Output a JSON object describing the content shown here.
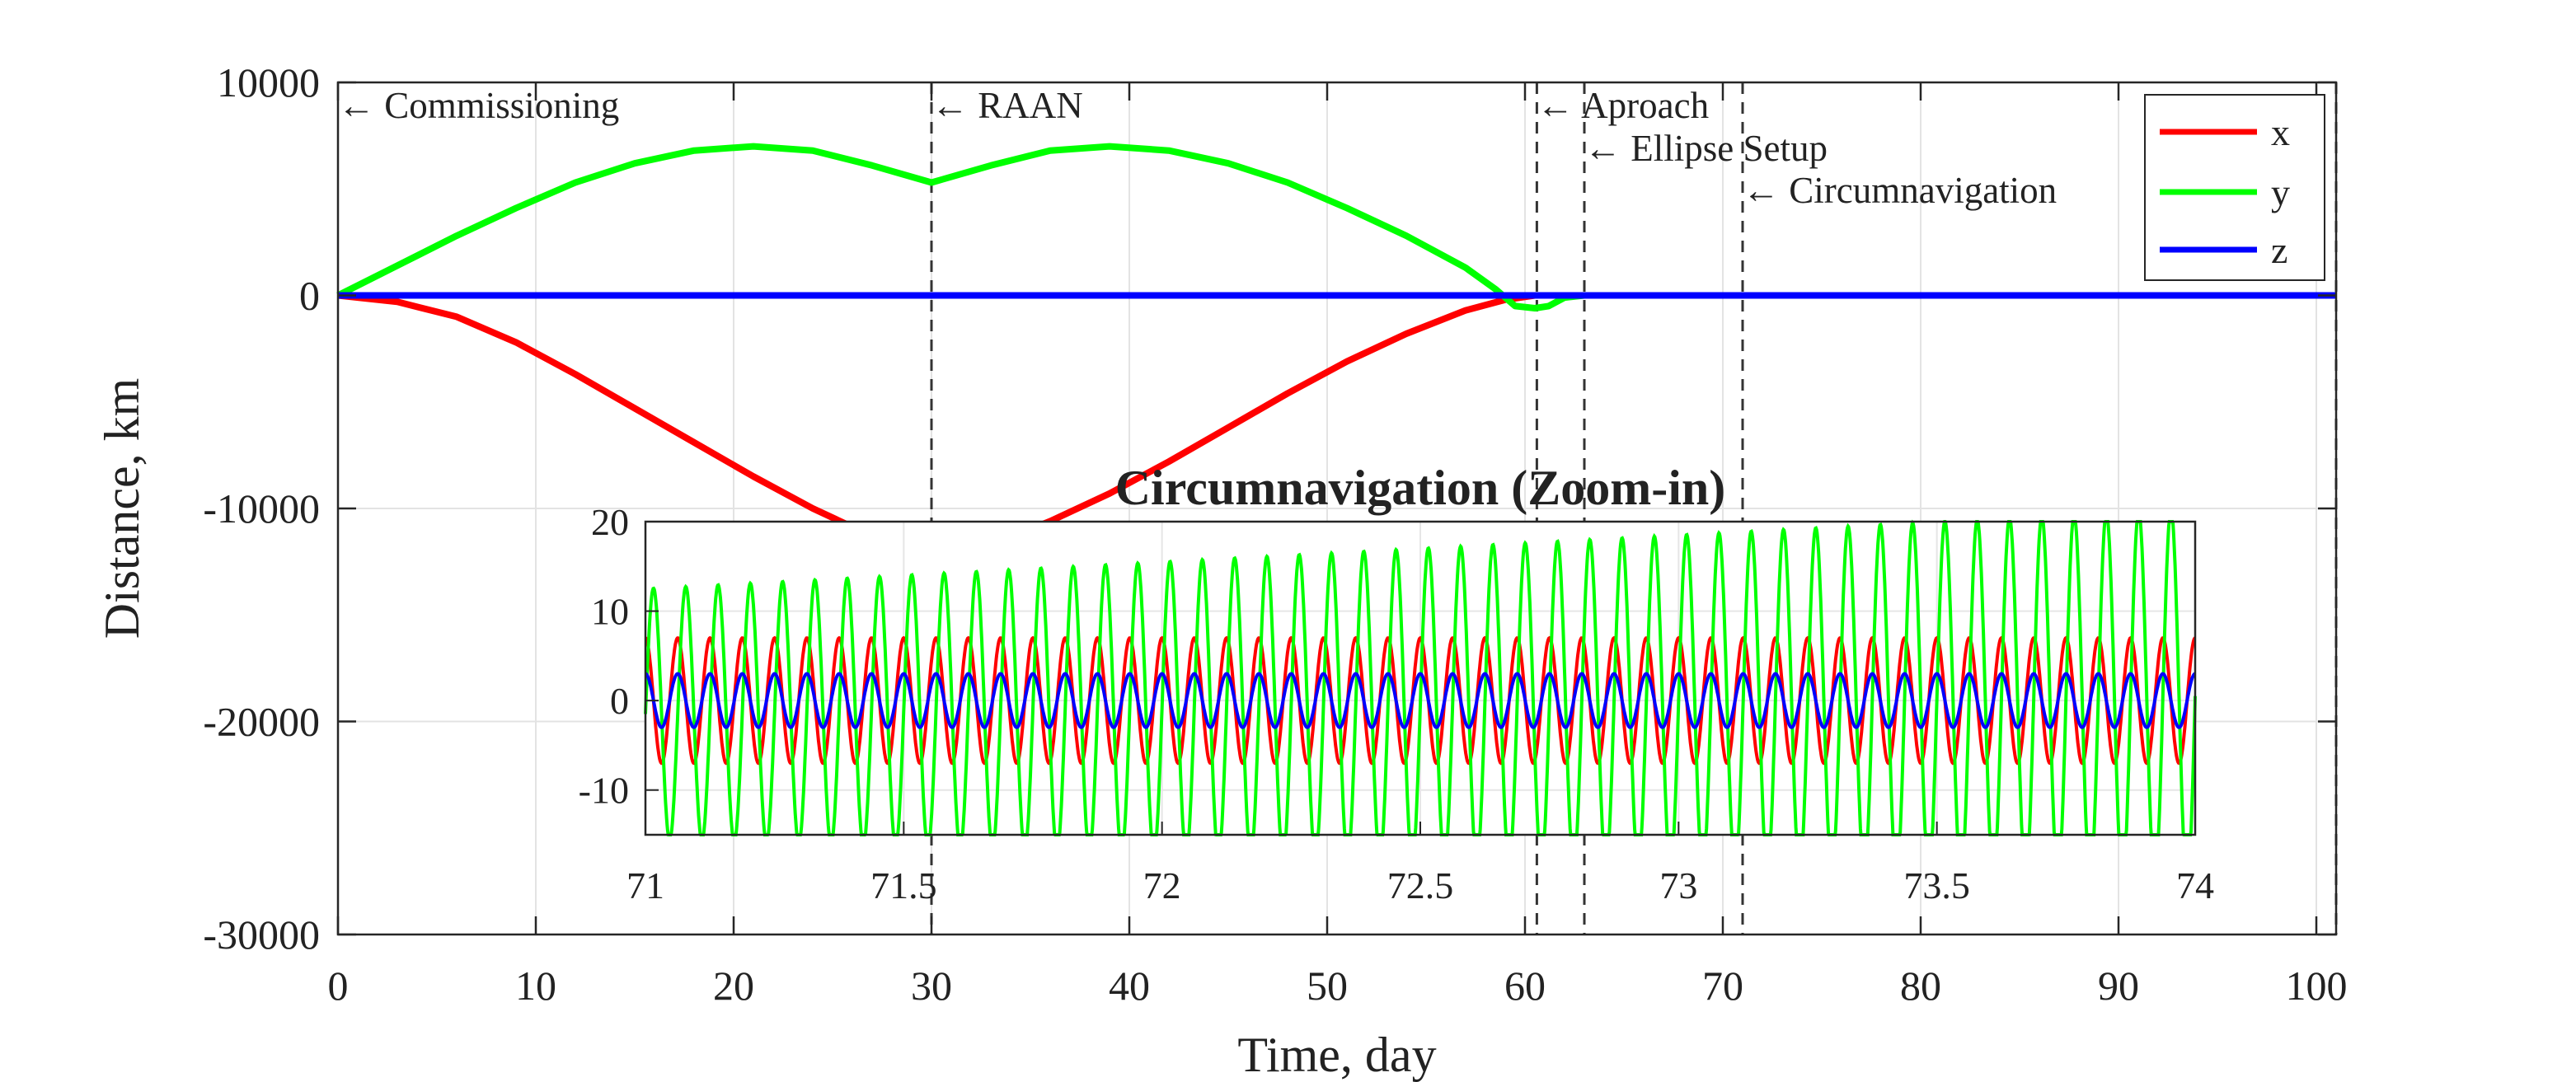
{
  "chart_data": [
    {
      "type": "line",
      "title": "",
      "xlabel": "Time, day",
      "ylabel": "Distance, km",
      "xlim": [
        0,
        101
      ],
      "ylim": [
        -30000,
        10000
      ],
      "x_ticks": [
        0,
        10,
        20,
        30,
        40,
        50,
        60,
        70,
        80,
        90,
        100
      ],
      "y_ticks": [
        10000,
        0,
        -10000,
        -20000,
        -30000
      ],
      "x_tick_labels": [
        "0",
        "10",
        "20",
        "30",
        "40",
        "50",
        "60",
        "70",
        "80",
        "90",
        "100"
      ],
      "y_tick_labels": [
        "10000",
        "0",
        "-10000",
        "-20000",
        "-30000"
      ],
      "grid": true,
      "legend": {
        "position": "top-right",
        "entries": [
          {
            "name": "x",
            "color": "#ff0000"
          },
          {
            "name": "y",
            "color": "#00ff00"
          },
          {
            "name": "z",
            "color": "#0000ff"
          }
        ]
      },
      "series": [
        {
          "name": "x",
          "color": "#ff0000",
          "x": [
            0,
            3,
            6,
            9,
            12,
            15,
            18,
            21,
            24,
            27,
            30,
            33,
            36,
            39,
            42,
            45,
            48,
            51,
            54,
            57,
            59,
            60.5,
            61,
            63,
            101
          ],
          "y": [
            0,
            -300,
            -1000,
            -2200,
            -3700,
            -5300,
            -6900,
            -8500,
            -10000,
            -11300,
            -12300,
            -11700,
            -10600,
            -9300,
            -7800,
            -6200,
            -4600,
            -3100,
            -1800,
            -700,
            -200,
            0,
            0,
            0,
            0
          ]
        },
        {
          "name": "y",
          "color": "#00ff00",
          "x": [
            0,
            3,
            6,
            9,
            12,
            15,
            18,
            21,
            24,
            27,
            30,
            33,
            36,
            39,
            42,
            45,
            48,
            51,
            54,
            57,
            58.5,
            59.5,
            60.5,
            61.2,
            62,
            63,
            101
          ],
          "y": [
            0,
            1400,
            2800,
            4100,
            5300,
            6200,
            6800,
            7000,
            6800,
            6100,
            5300,
            6100,
            6800,
            7000,
            6800,
            6200,
            5300,
            4100,
            2800,
            1300,
            300,
            -500,
            -600,
            -500,
            -100,
            0,
            0
          ]
        },
        {
          "name": "z",
          "color": "#0000ff",
          "x": [
            0,
            101
          ],
          "y": [
            0,
            0
          ]
        }
      ],
      "annotations": [
        {
          "x": 0,
          "text": "← Commissioning",
          "row": 1
        },
        {
          "x": 30,
          "text": "← RAAN",
          "row": 1
        },
        {
          "x": 60.6,
          "text": "← Aproach",
          "row": 1
        },
        {
          "x": 63,
          "text": "← Ellipse Setup",
          "row": 2
        },
        {
          "x": 71,
          "text": "← Circumnavigation",
          "row": 3
        },
        {
          "x": 101,
          "text": "",
          "row": 0
        }
      ],
      "vertical_dashed_lines_x": [
        30,
        60.6,
        63,
        71,
        101
      ]
    },
    {
      "type": "line",
      "title": "Circumnavigation (Zoom-in)",
      "xlabel": "",
      "ylabel": "",
      "xlim": [
        71,
        74
      ],
      "ylim": [
        -15,
        20
      ],
      "x_ticks": [
        71,
        71.5,
        72,
        72.5,
        73,
        73.5,
        74
      ],
      "y_ticks": [
        20,
        10,
        0,
        -10
      ],
      "x_tick_labels": [
        "71",
        "71.5",
        "72",
        "72.5",
        "73",
        "73.5",
        "74"
      ],
      "y_tick_labels": [
        "20",
        "10",
        "0",
        "-10"
      ],
      "grid": true,
      "period_days": 0.0625,
      "series": [
        {
          "name": "x",
          "color": "#ff0000",
          "amplitude": 7,
          "amplitude_end": 7,
          "offset": 0,
          "phase": 0
        },
        {
          "name": "y",
          "color": "#00ff00",
          "amplitude": 14,
          "amplitude_end": 21,
          "offset": -1.5,
          "offset_end": 0.5,
          "phase": -1.5708
        },
        {
          "name": "z",
          "color": "#0000ff",
          "amplitude": 3,
          "amplitude_end": 3,
          "offset": 0,
          "phase": 0
        }
      ]
    }
  ]
}
